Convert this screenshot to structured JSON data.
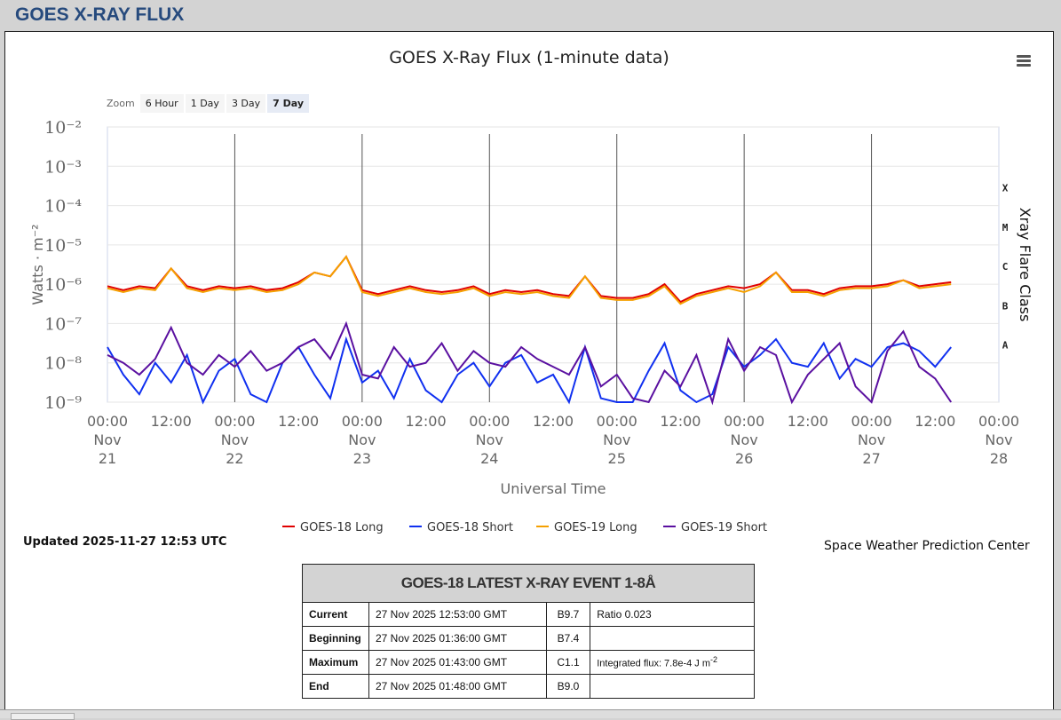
{
  "header": {
    "title": "GOES X-RAY FLUX"
  },
  "zoom": {
    "label": "Zoom",
    "buttons": [
      "6 Hour",
      "1 Day",
      "3 Day",
      "7 Day"
    ],
    "active": "7 Day"
  },
  "updated": "Updated 2025-11-27 12:53 UTC",
  "credit": "Space Weather Prediction Center",
  "chart_data": {
    "type": "line",
    "title": "GOES X-Ray Flux (1-minute data)",
    "xlabel": "Universal Time",
    "ylabel": "Watts · m⁻²",
    "y2label": "Xray Flare Class",
    "yscale": "log",
    "ylim_log10": [
      -9,
      -2
    ],
    "ytick_labels": [
      "10⁻⁹",
      "10⁻⁸",
      "10⁻⁷",
      "10⁻⁶",
      "10⁻⁵",
      "10⁻⁴",
      "10⁻³",
      "10⁻²"
    ],
    "flare_classes": [
      "A",
      "B",
      "C",
      "M",
      "X"
    ],
    "xlim_hours": [
      0,
      168
    ],
    "x_start": "Nov 21 00:00",
    "xtick_labels": [
      [
        "00:00",
        "Nov",
        "21"
      ],
      [
        "12:00"
      ],
      [
        "00:00",
        "Nov",
        "22"
      ],
      [
        "12:00"
      ],
      [
        "00:00",
        "Nov",
        "23"
      ],
      [
        "12:00"
      ],
      [
        "00:00",
        "Nov",
        "24"
      ],
      [
        "12:00"
      ],
      [
        "00:00",
        "Nov",
        "25"
      ],
      [
        "12:00"
      ],
      [
        "00:00",
        "Nov",
        "26"
      ],
      [
        "12:00"
      ],
      [
        "00:00",
        "Nov",
        "27"
      ],
      [
        "12:00"
      ],
      [
        "00:00",
        "Nov",
        "28"
      ]
    ],
    "sample_step_hours": 3,
    "series": [
      {
        "name": "GOES-18 Long",
        "color": "#e00000",
        "log10_values": [
          -6.05,
          -6.15,
          -6.05,
          -6.1,
          -5.6,
          -6.05,
          -6.15,
          -6.05,
          -6.1,
          -6.05,
          -6.15,
          -6.1,
          -5.95,
          -5.7,
          -5.8,
          -5.3,
          -6.15,
          -6.25,
          -6.15,
          -6.05,
          -6.15,
          -6.2,
          -6.15,
          -6.05,
          -6.25,
          -6.15,
          -6.2,
          -6.15,
          -6.25,
          -6.3,
          -5.8,
          -6.3,
          -6.35,
          -6.35,
          -6.25,
          -6.0,
          -6.45,
          -6.25,
          -6.15,
          -6.05,
          -6.1,
          -6.0,
          -5.7,
          -6.15,
          -6.15,
          -6.25,
          -6.1,
          -6.05,
          -6.05,
          -6.0,
          -5.9,
          -6.05,
          -6.0,
          -5.95
        ]
      },
      {
        "name": "GOES-18 Short",
        "color": "#1030f0",
        "log10_values": [
          -7.6,
          -8.3,
          -8.8,
          -8.0,
          -8.5,
          -7.8,
          -9,
          -8.2,
          -7.9,
          -8.8,
          -9,
          -8.0,
          -7.6,
          -8.3,
          -8.9,
          -7.4,
          -8.5,
          -8.2,
          -8.9,
          -7.9,
          -8.7,
          -9,
          -8.3,
          -8.0,
          -8.6,
          -8.0,
          -7.8,
          -8.5,
          -8.3,
          -9,
          -7.6,
          -8.9,
          -9,
          -9,
          -8.2,
          -7.5,
          -8.7,
          -9,
          -8.8,
          -7.6,
          -8.1,
          -7.8,
          -7.4,
          -8.0,
          -8.1,
          -7.5,
          -8.4,
          -7.9,
          -8.1,
          -7.6,
          -7.5,
          -7.7,
          -8.1,
          -7.6
        ]
      },
      {
        "name": "GOES-19 Long",
        "color": "#f5a000",
        "log10_values": [
          -6.1,
          -6.2,
          -6.1,
          -6.15,
          -5.6,
          -6.1,
          -6.2,
          -6.1,
          -6.15,
          -6.1,
          -6.2,
          -6.15,
          -6.0,
          -5.7,
          -5.8,
          -5.3,
          -6.2,
          -6.3,
          -6.2,
          -6.1,
          -6.2,
          -6.25,
          -6.2,
          -6.1,
          -6.3,
          -6.2,
          -6.25,
          -6.2,
          -6.3,
          -6.35,
          -5.8,
          -6.35,
          -6.4,
          -6.4,
          -6.3,
          -6.05,
          -6.5,
          -6.3,
          -6.2,
          -6.1,
          -6.2,
          -6.05,
          -5.7,
          -6.2,
          -6.2,
          -6.3,
          -6.15,
          -6.1,
          -6.1,
          -6.05,
          -5.9,
          -6.1,
          -6.05,
          -6.0
        ]
      },
      {
        "name": "GOES-19 Short",
        "color": "#5a10a0",
        "log10_values": [
          -7.8,
          -8.0,
          -8.3,
          -7.9,
          -7.1,
          -8.0,
          -8.3,
          -7.8,
          -8.1,
          -7.7,
          -8.2,
          -8.0,
          -7.6,
          -7.4,
          -7.9,
          -7.0,
          -8.3,
          -8.4,
          -7.6,
          -8.1,
          -8.0,
          -7.5,
          -8.2,
          -7.7,
          -8.0,
          -8.1,
          -7.6,
          -7.9,
          -8.1,
          -8.3,
          -7.6,
          -8.6,
          -8.3,
          -8.9,
          -9,
          -8.2,
          -8.6,
          -7.8,
          -9,
          -7.4,
          -8.2,
          -7.6,
          -7.8,
          -9,
          -8.3,
          -7.9,
          -7.5,
          -8.6,
          -9,
          -7.7,
          -7.2,
          -8.1,
          -8.4,
          -9
        ]
      }
    ]
  },
  "event_table": {
    "title": "GOES-18 LATEST X-RAY EVENT 1-8Å",
    "rows": [
      {
        "label": "Current",
        "time": "27 Nov 2025 12:53:00 GMT",
        "class": "B9.7",
        "note": "Ratio 0.023"
      },
      {
        "label": "Beginning",
        "time": "27 Nov 2025 01:36:00 GMT",
        "class": "B7.4",
        "note": ""
      },
      {
        "label": "Maximum",
        "time": "27 Nov 2025 01:43:00 GMT",
        "class": "C1.1",
        "note": "Integrated flux: 7.8e-4 J m",
        "note_sup": "-2"
      },
      {
        "label": "End",
        "time": "27 Nov 2025 01:48:00 GMT",
        "class": "B9.0",
        "note": ""
      }
    ]
  }
}
